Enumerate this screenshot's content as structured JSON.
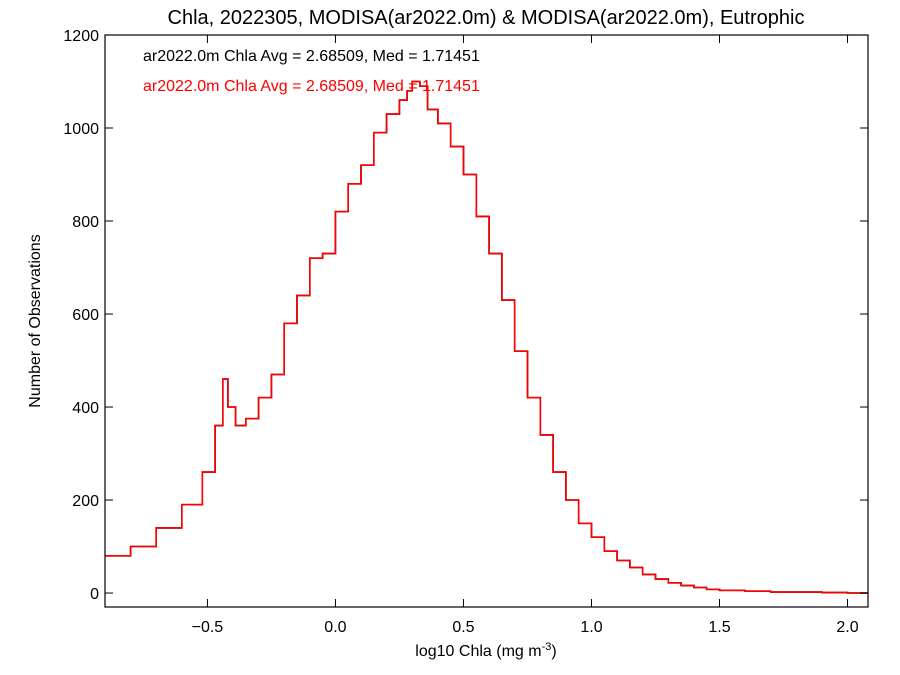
{
  "chart_data": {
    "type": "line",
    "title": "Chla, 2022305, MODISA(ar2022.0m) & MODISA(ar2022.0m), Eutrophic",
    "xlabel_main": "log10 Chla (mg m",
    "xlabel_sup": "-3",
    "xlabel_close": ")",
    "ylabel": "Number of Observations",
    "xlim": [
      -0.9,
      2.08
    ],
    "ylim": [
      -30,
      1200
    ],
    "x_ticks": [
      -0.5,
      0.0,
      0.5,
      1.0,
      1.5,
      2.0
    ],
    "x_tick_labels": [
      "−0.5",
      "0.0",
      "0.5",
      "1.0",
      "1.5",
      "2.0"
    ],
    "y_ticks": [
      0,
      200,
      400,
      600,
      800,
      1000,
      1200
    ],
    "y_tick_labels": [
      "0",
      "200",
      "400",
      "600",
      "800",
      "1000",
      "1200"
    ],
    "grid": false,
    "plot_style": "step",
    "annotations": [
      {
        "text": "ar2022.0m Chla Avg = 2.68509, Med = 1.71451",
        "color": "#000000"
      },
      {
        "text": "ar2022.0m Chla Avg = 2.68509, Med = 1.71451",
        "color": "#ff0000"
      }
    ],
    "series": [
      {
        "color": "#000000",
        "x": [
          -0.9,
          -0.8,
          -0.7,
          -0.6,
          -0.52,
          -0.47,
          -0.44,
          -0.42,
          -0.39,
          -0.35,
          -0.3,
          -0.25,
          -0.2,
          -0.15,
          -0.1,
          -0.05,
          0.0,
          0.05,
          0.1,
          0.15,
          0.2,
          0.25,
          0.28,
          0.3,
          0.33,
          0.36,
          0.4,
          0.45,
          0.5,
          0.55,
          0.6,
          0.65,
          0.7,
          0.75,
          0.8,
          0.85,
          0.9,
          0.95,
          1.0,
          1.05,
          1.1,
          1.15,
          1.2,
          1.25,
          1.3,
          1.35,
          1.4,
          1.45,
          1.5,
          1.6,
          1.7,
          1.8,
          1.9,
          2.0,
          2.08
        ],
        "y": [
          80,
          100,
          140,
          190,
          260,
          360,
          460,
          400,
          360,
          375,
          420,
          470,
          580,
          640,
          720,
          730,
          820,
          880,
          920,
          990,
          1030,
          1060,
          1080,
          1100,
          1090,
          1040,
          1010,
          960,
          900,
          810,
          730,
          630,
          520,
          420,
          340,
          260,
          200,
          150,
          120,
          90,
          70,
          55,
          40,
          30,
          22,
          16,
          12,
          8,
          6,
          4,
          2,
          2,
          1,
          0,
          0
        ]
      },
      {
        "color": "#ff0000",
        "x": [
          -0.9,
          -0.8,
          -0.7,
          -0.6,
          -0.52,
          -0.47,
          -0.44,
          -0.42,
          -0.39,
          -0.35,
          -0.3,
          -0.25,
          -0.2,
          -0.15,
          -0.1,
          -0.05,
          0.0,
          0.05,
          0.1,
          0.15,
          0.2,
          0.25,
          0.28,
          0.3,
          0.33,
          0.36,
          0.4,
          0.45,
          0.5,
          0.55,
          0.6,
          0.65,
          0.7,
          0.75,
          0.8,
          0.85,
          0.9,
          0.95,
          1.0,
          1.05,
          1.1,
          1.15,
          1.2,
          1.25,
          1.3,
          1.35,
          1.4,
          1.45,
          1.5,
          1.6,
          1.7,
          1.8,
          1.9,
          2.0,
          2.08
        ],
        "y": [
          80,
          100,
          140,
          190,
          260,
          360,
          460,
          400,
          360,
          375,
          420,
          470,
          580,
          640,
          720,
          730,
          820,
          880,
          920,
          990,
          1030,
          1060,
          1080,
          1100,
          1090,
          1040,
          1010,
          960,
          900,
          810,
          730,
          630,
          520,
          420,
          340,
          260,
          200,
          150,
          120,
          90,
          70,
          55,
          40,
          30,
          22,
          16,
          12,
          8,
          6,
          4,
          2,
          2,
          1,
          0,
          0
        ]
      }
    ]
  }
}
